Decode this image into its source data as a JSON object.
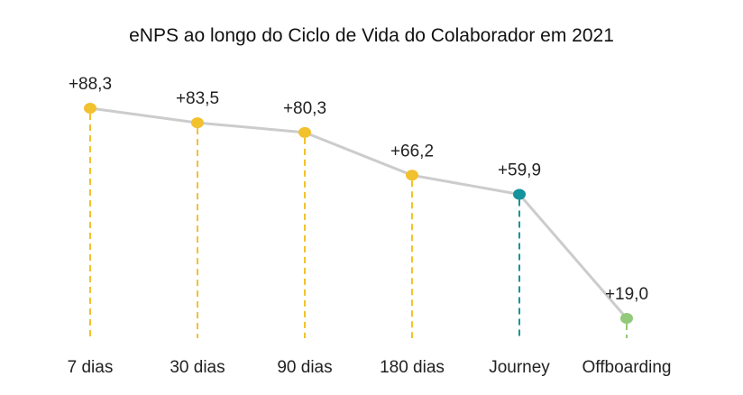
{
  "chart_data": {
    "type": "line",
    "title": "eNPS ao longo do Ciclo de Vida do Colaborador em 2021",
    "categories": [
      "7 dias",
      "30 dias",
      "90 dias",
      "180 dias",
      "Journey",
      "Offboarding"
    ],
    "values": [
      88.3,
      83.5,
      80.3,
      66.2,
      59.9,
      19.0
    ],
    "data_labels": [
      "+88,3",
      "+83,5",
      "+80,3",
      "+66,2",
      "+59,9",
      "+19,0"
    ],
    "xlabel": "",
    "ylabel": "",
    "grid": false,
    "legend": "none",
    "colors": {
      "line": "#cccccc",
      "points": [
        "#f2c12e",
        "#f2c12e",
        "#f2c12e",
        "#f2c12e",
        "#13939b",
        "#93c97a"
      ]
    }
  }
}
